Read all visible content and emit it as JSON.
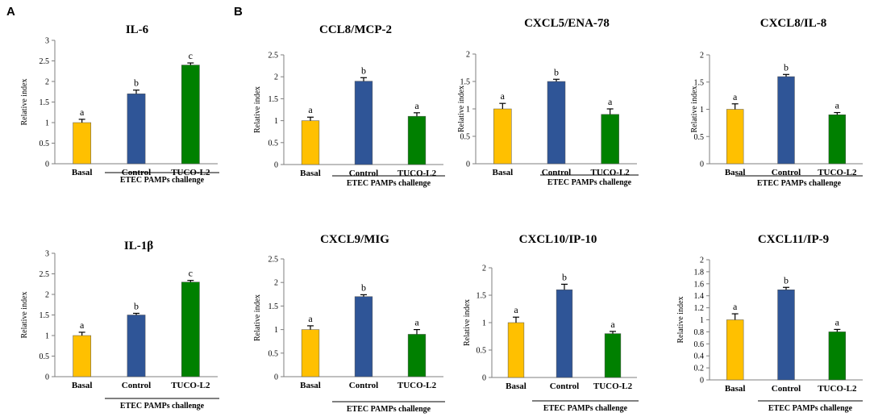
{
  "panel_letters": [
    "A",
    "B"
  ],
  "colors": {
    "basal": "#ffc000",
    "control": "#2f5597",
    "tuco": "#008000",
    "axis": "#7f7f7f",
    "error": "#000000"
  },
  "chart_data": [
    {
      "type": "bar",
      "title": "IL-6",
      "ylabel": "Relative index",
      "categories": [
        "Basal",
        "Control",
        "TUCO-L2"
      ],
      "values": [
        1.0,
        1.7,
        2.4
      ],
      "errors": [
        0.08,
        0.09,
        0.05
      ],
      "letters": [
        "a",
        "b",
        "c"
      ],
      "yticks": [
        "0",
        "0.5",
        "1",
        "1.5",
        "2",
        "2.5",
        "3"
      ],
      "ylim": [
        0,
        3
      ],
      "group_label": "ETEC PAMPs challenge"
    },
    {
      "type": "bar",
      "title": "CCL8/MCP-2",
      "ylabel": "Relative index",
      "categories": [
        "Basal",
        "Control",
        "TUCO-L2"
      ],
      "values": [
        1.0,
        1.9,
        1.1
      ],
      "errors": [
        0.08,
        0.08,
        0.08
      ],
      "letters": [
        "a",
        "b",
        "a"
      ],
      "yticks": [
        "0",
        "0.5",
        "1",
        "1.5",
        "2",
        "2.5"
      ],
      "ylim": [
        0,
        2.5
      ],
      "group_label": "ETEC PAMPs challenge"
    },
    {
      "type": "bar",
      "title": "CXCL5/ENA-78",
      "ylabel": "Relative index",
      "categories": [
        "Basal",
        "Control",
        "TUCO-L2"
      ],
      "values": [
        1.0,
        1.5,
        0.9
      ],
      "errors": [
        0.1,
        0.04,
        0.1
      ],
      "letters": [
        "a",
        "b",
        "a"
      ],
      "yticks": [
        "0",
        "0.5",
        "1",
        "1.5",
        "2"
      ],
      "ylim": [
        0,
        2
      ],
      "group_label": "ETEC PAMPs challenge"
    },
    {
      "type": "bar",
      "title": "CXCL8/IL-8",
      "ylabel": "Relative index",
      "categories": [
        "Basal",
        "Control",
        "TUCO-L2"
      ],
      "values": [
        1.0,
        1.6,
        0.9
      ],
      "errors": [
        0.1,
        0.04,
        0.04
      ],
      "letters": [
        "a",
        "b",
        "a"
      ],
      "yticks": [
        "0",
        "0.5",
        "1",
        "1.5",
        "2"
      ],
      "ylim": [
        0,
        2
      ],
      "group_label": "ETEC PAMPs challenge"
    },
    {
      "type": "bar",
      "title": "IL-1β",
      "ylabel": "Relative index",
      "categories": [
        "Basal",
        "Control",
        "TUCO-L2"
      ],
      "values": [
        1.0,
        1.5,
        2.3
      ],
      "errors": [
        0.08,
        0.04,
        0.04
      ],
      "letters": [
        "a",
        "b",
        "c"
      ],
      "yticks": [
        "0",
        "0.5",
        "1",
        "1.5",
        "2",
        "2.5",
        "3"
      ],
      "ylim": [
        0,
        3
      ],
      "group_label": "ETEC PAMPs challenge"
    },
    {
      "type": "bar",
      "title": "CXCL9/MIG",
      "ylabel": "Relative index",
      "categories": [
        "Basal",
        "Control",
        "TUCO-L2"
      ],
      "values": [
        1.0,
        1.7,
        0.9
      ],
      "errors": [
        0.08,
        0.04,
        0.1
      ],
      "letters": [
        "a",
        "b",
        "a"
      ],
      "yticks": [
        "0",
        "0.5",
        "1",
        "1.5",
        "2",
        "2.5"
      ],
      "ylim": [
        0,
        2.5
      ],
      "group_label": "ETEC PAMPs challenge"
    },
    {
      "type": "bar",
      "title": "CXCL10/IP-10",
      "ylabel": "Relative index",
      "categories": [
        "Basal",
        "Control",
        "TUCO-L2"
      ],
      "values": [
        1.0,
        1.6,
        0.8
      ],
      "errors": [
        0.1,
        0.1,
        0.04
      ],
      "letters": [
        "a",
        "b",
        "a"
      ],
      "yticks": [
        "0",
        "0.5",
        "1",
        "1.5",
        "2"
      ],
      "ylim": [
        0,
        2
      ],
      "group_label": "ETEC PAMPs challenge"
    },
    {
      "type": "bar",
      "title": "CXCL11/IP-9",
      "ylabel": "Relative index",
      "categories": [
        "Basal",
        "Control",
        "TUCO-L2"
      ],
      "values": [
        1.0,
        1.5,
        0.8
      ],
      "errors": [
        0.1,
        0.04,
        0.04
      ],
      "letters": [
        "a",
        "b",
        "a"
      ],
      "yticks": [
        "0",
        "0.2",
        "0.4",
        "0.6",
        "0.8",
        "1",
        "1.2",
        "1.4",
        "1.6",
        "1.8",
        "2"
      ],
      "ylim": [
        0,
        2
      ],
      "group_label": "ETEC PAMPs challenge"
    }
  ]
}
